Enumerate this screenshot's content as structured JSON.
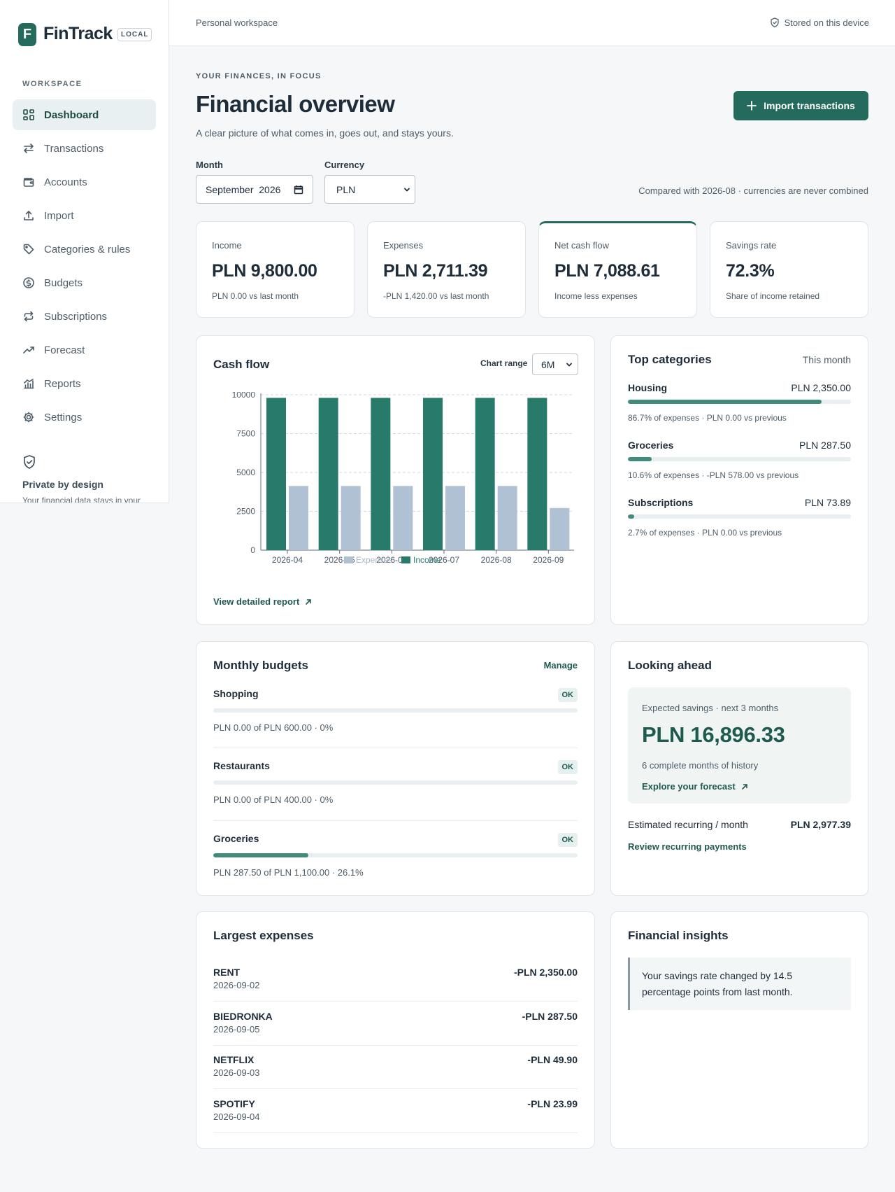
{
  "app": {
    "logo_letter": "F",
    "name": "FinTrack",
    "badge": "LOCAL"
  },
  "sidebar": {
    "section_label": "WORKSPACE",
    "items": [
      {
        "label": "Dashboard",
        "icon": "grid-icon",
        "active": true
      },
      {
        "label": "Transactions",
        "icon": "arrows-left-right-icon"
      },
      {
        "label": "Accounts",
        "icon": "wallet-icon"
      },
      {
        "label": "Import",
        "icon": "upload-icon"
      },
      {
        "label": "Categories & rules",
        "icon": "tag-icon"
      },
      {
        "label": "Budgets",
        "icon": "dollar-circle-icon"
      },
      {
        "label": "Subscriptions",
        "icon": "repeat-icon"
      },
      {
        "label": "Forecast",
        "icon": "trend-up-icon"
      },
      {
        "label": "Reports",
        "icon": "bar-chart-icon"
      },
      {
        "label": "Settings",
        "icon": "gear-icon"
      }
    ],
    "privacy_title": "Private by design",
    "privacy_text": "Your financial data stays in your"
  },
  "topbar": {
    "workspace": "Personal workspace",
    "storage": "Stored on this device"
  },
  "header": {
    "eyebrow": "YOUR FINANCES, IN FOCUS",
    "title": "Financial overview",
    "subtitle": "A clear picture of what comes in, goes out, and stays yours.",
    "import_button": "Import transactions"
  },
  "filters": {
    "month_label": "Month",
    "month_value": "September  2026",
    "currency_label": "Currency",
    "currency_value": "PLN",
    "compare_note": "Compared with 2026-08 · currencies are never combined"
  },
  "kpis": [
    {
      "label": "Income",
      "value": "PLN 9,800.00",
      "note": "PLN 0.00 vs last month"
    },
    {
      "label": "Expenses",
      "value": "PLN 2,711.39",
      "note": "-PLN 1,420.00 vs last month"
    },
    {
      "label": "Net cash flow",
      "value": "PLN 7,088.61",
      "note": "Income less expenses",
      "highlighted": true
    },
    {
      "label": "Savings rate",
      "value": "72.3%",
      "note": "Share of income retained"
    }
  ],
  "cashflow": {
    "title": "Cash flow",
    "range_label": "Chart range",
    "range_value": "6M",
    "link": "View detailed report"
  },
  "chart_data": {
    "type": "bar",
    "categories": [
      "2026-04",
      "2026-05",
      "2026-06",
      "2026-07",
      "2026-08",
      "2026-09"
    ],
    "series": [
      {
        "name": "Income",
        "values": [
          9800,
          9800,
          9800,
          9800,
          9800,
          9800
        ],
        "color": "#287a6b"
      },
      {
        "name": "Expenses",
        "values": [
          4130,
          4130,
          4130,
          4130,
          4131.39,
          2711.39
        ],
        "color": "#b0c1d3"
      }
    ],
    "yticks": [
      0,
      2500,
      5000,
      7500,
      10000
    ],
    "ylim": [
      0,
      10000
    ],
    "legend": [
      "Expenses",
      "Income"
    ],
    "legend_position": "bottom-center",
    "grid": true
  },
  "top_categories": {
    "title": "Top categories",
    "period": "This month",
    "items": [
      {
        "name": "Housing",
        "amount": "PLN 2,350.00",
        "share": 0.867,
        "note": "86.7% of expenses · PLN 0.00 vs previous"
      },
      {
        "name": "Groceries",
        "amount": "PLN 287.50",
        "share": 0.106,
        "note": "10.6% of expenses · -PLN 578.00 vs previous"
      },
      {
        "name": "Subscriptions",
        "amount": "PLN 73.89",
        "share": 0.027,
        "note": "2.7% of expenses · PLN 0.00 vs previous"
      }
    ]
  },
  "budgets": {
    "title": "Monthly budgets",
    "manage": "Manage",
    "items": [
      {
        "name": "Shopping",
        "status": "OK",
        "progress": 0,
        "note": "PLN 0.00 of PLN 600.00 · 0%"
      },
      {
        "name": "Restaurants",
        "status": "OK",
        "progress": 0,
        "note": "PLN 0.00 of PLN 400.00 · 0%"
      },
      {
        "name": "Groceries",
        "status": "OK",
        "progress": 0.261,
        "note": "PLN 287.50 of PLN 1,100.00 · 26.1%"
      }
    ]
  },
  "ahead": {
    "title": "Looking ahead",
    "savings_label": "Expected savings · next 3 months",
    "savings_value": "PLN 16,896.33",
    "history_note": "6 complete months of history",
    "forecast_link": "Explore your forecast",
    "recurring_label": "Estimated recurring / month",
    "recurring_value": "PLN 2,977.39",
    "review_link": "Review recurring payments"
  },
  "largest": {
    "title": "Largest expenses",
    "items": [
      {
        "name": "RENT",
        "date": "2026-09-02",
        "amount": "-PLN 2,350.00"
      },
      {
        "name": "BIEDRONKA",
        "date": "2026-09-05",
        "amount": "-PLN 287.50"
      },
      {
        "name": "NETFLIX",
        "date": "2026-09-03",
        "amount": "-PLN 49.90"
      },
      {
        "name": "SPOTIFY",
        "date": "2026-09-04",
        "amount": "-PLN 23.99"
      }
    ]
  },
  "insights": {
    "title": "Financial insights",
    "text": "Your savings rate changed by 14.5 percentage points from last month."
  }
}
